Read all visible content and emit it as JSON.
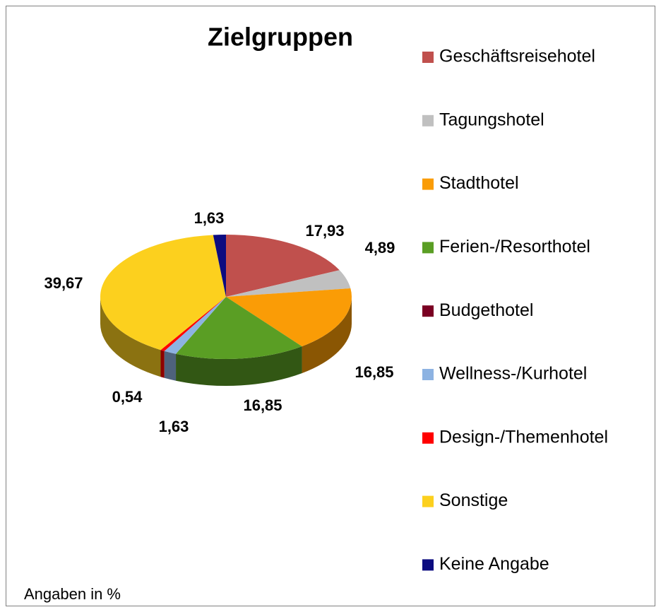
{
  "chart_data": {
    "type": "pie",
    "title": "Zielgruppen",
    "note": "Angaben in %",
    "categories": [
      "Geschäftsreisehotel",
      "Tagungshotel",
      "Stadthotel",
      "Ferien-/Resorthotel",
      "Budgethotel",
      "Wellness-/Kurhotel",
      "Design-/Themenhotel",
      "Sonstige",
      "Keine Angabe"
    ],
    "values": [
      17.93,
      4.89,
      16.85,
      16.85,
      0,
      1.63,
      0.54,
      39.67,
      1.63
    ],
    "value_labels": [
      "17,93",
      "4,89",
      "16,85",
      "16,85",
      null,
      "1,63",
      "0,54",
      "39,67",
      "1,63"
    ],
    "colors": [
      "#c0504d",
      "#c0c0c0",
      "#fa9c06",
      "#5a9e24",
      "#7a0022",
      "#8db3e2",
      "#ff0000",
      "#fcd01e",
      "#0c0c80"
    ],
    "legend": "right"
  }
}
